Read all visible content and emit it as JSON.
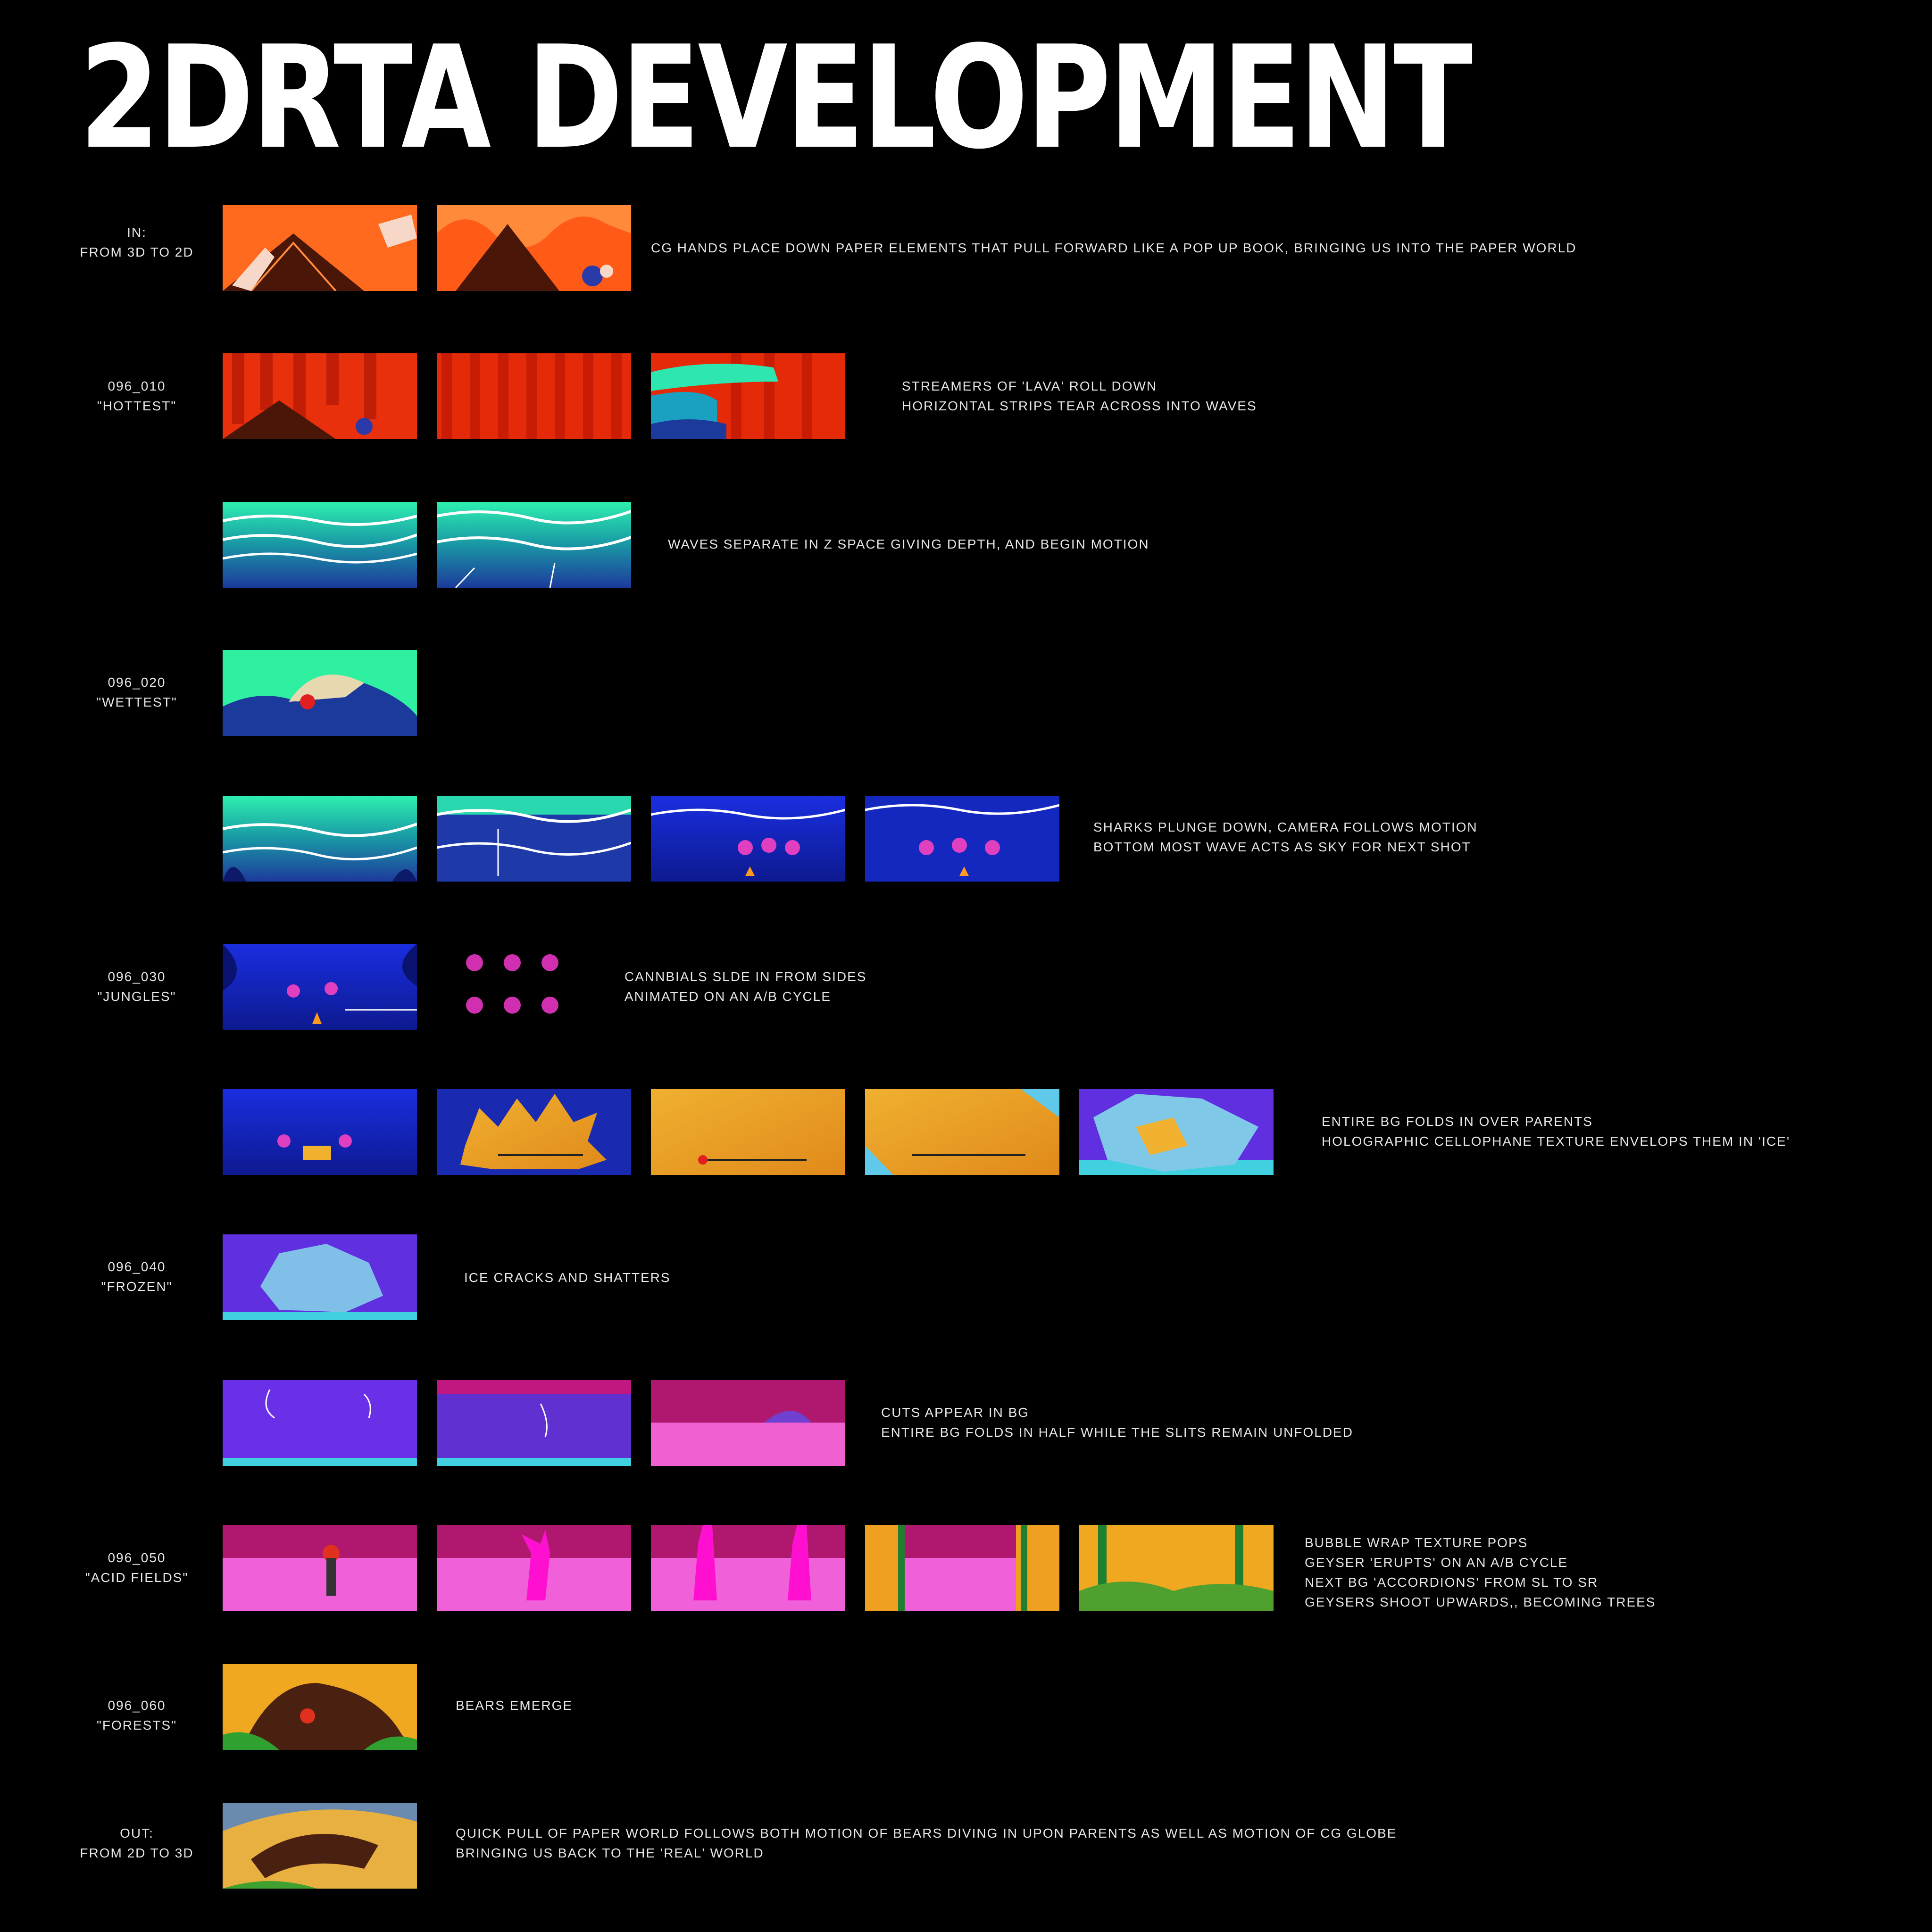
{
  "title": "2DRTA DEVELOPMENT",
  "rows": [
    {
      "label": "IN:\nFROM 3D TO 2D",
      "note": "CG HANDS PLACE DOWN PAPER ELEMENTS THAT PULL FORWARD LIKE A POP UP BOOK, BRINGING US INTO THE PAPER WORLD"
    },
    {
      "label": "096_010\n\"HOTTEST\"",
      "note": "STREAMERS OF 'LAVA' ROLL DOWN\nHORIZONTAL STRIPS TEAR ACROSS INTO WAVES"
    },
    {
      "label": "",
      "note": "WAVES SEPARATE IN Z SPACE GIVING DEPTH, AND BEGIN MOTION"
    },
    {
      "label": "096_020\n\"WETTEST\"",
      "note": ""
    },
    {
      "label": "",
      "note": "SHARKS PLUNGE DOWN, CAMERA FOLLOWS MOTION\nBOTTOM MOST WAVE ACTS AS SKY FOR NEXT SHOT"
    },
    {
      "label": "096_030\n\"JUNGLES\"",
      "note": "CANNBIALS SLDE IN FROM SIDES\nANIMATED ON AN A/B CYCLE"
    },
    {
      "label": "",
      "note": "ENTIRE BG FOLDS IN OVER PARENTS\nHOLOGRAPHIC CELLOPHANE TEXTURE ENVELOPS THEM IN 'ICE'"
    },
    {
      "label": "096_040\n\"FROZEN\"",
      "note": "ICE CRACKS AND SHATTERS"
    },
    {
      "label": "",
      "note": "CUTS APPEAR IN BG\nENTIRE BG FOLDS IN HALF WHILE THE SLITS REMAIN UNFOLDED"
    },
    {
      "label": "096_050\n\"ACID FIELDS\"",
      "note": "BUBBLE WRAP TEXTURE POPS\nGEYSER 'ERUPTS' ON AN A/B CYCLE\nNEXT BG 'ACCORDIONS' FROM SL TO SR\nGEYSERS SHOOT UPWARDS,, BECOMING TREES"
    },
    {
      "label": "096_060\n\"FORESTS\"",
      "note": "BEARS EMERGE"
    },
    {
      "label": "OUT:\nFROM 2D TO 3D",
      "note": "QUICK PULL OF PAPER WORLD FOLLOWS BOTH MOTION OF BEARS DIVING IN UPON PARENTS AS WELL AS MOTION OF CG GLOBE\nBRINGING US BACK TO THE 'REAL' WORLD"
    }
  ]
}
